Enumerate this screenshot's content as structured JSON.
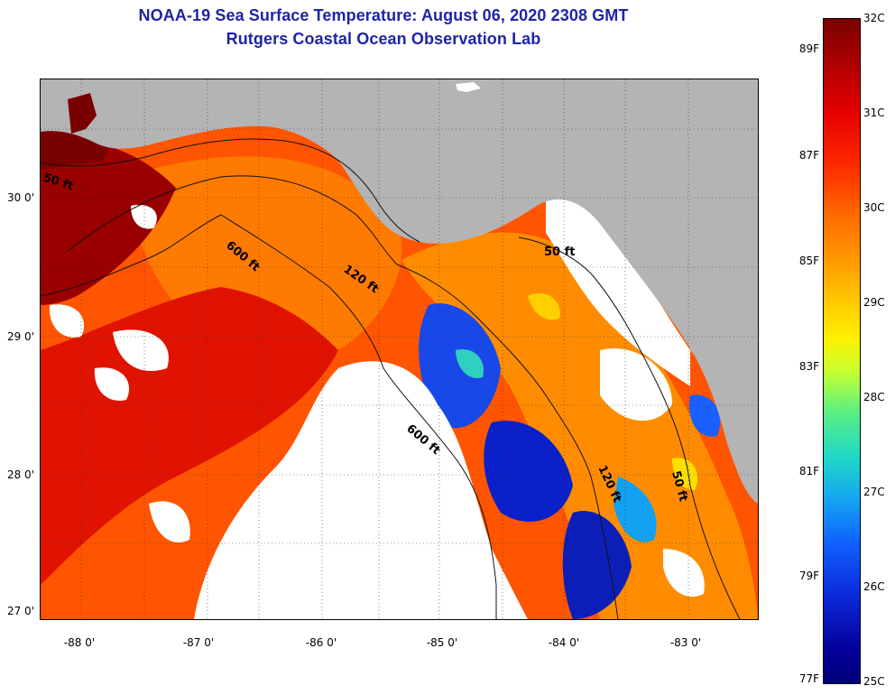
{
  "header": {
    "title_line1": "NOAA-19 Sea Surface Temperature:  August 06, 2020 2308 GMT",
    "title_line2": "Rutgers Coastal Ocean Observation Lab"
  },
  "map": {
    "lat_labels": [
      "30 0'",
      "29 0'",
      "28 0'",
      "27 0'"
    ],
    "lon_labels": [
      "-88 0'",
      "-87 0'",
      "-86 0'",
      "-85 0'",
      "-84 0'",
      "-83 0'"
    ],
    "contour_labels": [
      {
        "id": "c50-west",
        "text": "50 ft"
      },
      {
        "id": "c600-north",
        "text": "600 ft"
      },
      {
        "id": "c120-north",
        "text": "120 ft"
      },
      {
        "id": "c50-east",
        "text": "50 ft"
      },
      {
        "id": "c600-south",
        "text": "600 ft"
      },
      {
        "id": "c120-south",
        "text": "120 ft"
      },
      {
        "id": "c50-south",
        "text": "50 ft"
      }
    ],
    "colors": {
      "land": "#b4b4b4",
      "cloud": "#ffffff",
      "warm": "#ff3a00",
      "hot": "#8a0000",
      "cool": "#1530e0"
    }
  },
  "colorbar": {
    "celsius_labels": [
      "32C",
      "31C",
      "30C",
      "29C",
      "28C",
      "27C",
      "26C",
      "25C"
    ],
    "fahrenheit_labels": [
      "89F",
      "87F",
      "85F",
      "83F",
      "81F",
      "79F",
      "77F"
    ]
  }
}
